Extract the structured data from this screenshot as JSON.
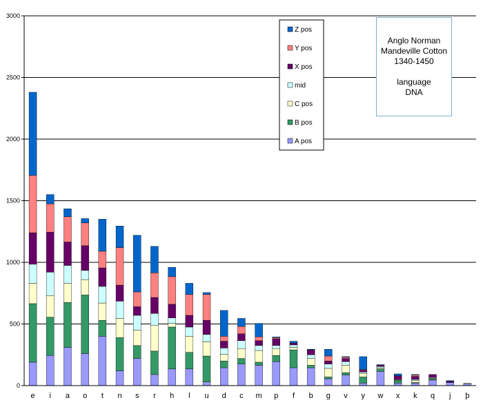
{
  "chart_data": {
    "type": "bar",
    "stacked": true,
    "title": "",
    "xlabel": "",
    "ylabel": "",
    "ylim": [
      0,
      3000
    ],
    "yticks": [
      0,
      500,
      1000,
      1500,
      2000,
      2500,
      3000
    ],
    "grid": true,
    "legend_position": "top-center",
    "categories": [
      "e",
      "i",
      "a",
      "o",
      "t",
      "n",
      "s",
      "r",
      "h",
      "l",
      "u",
      "d",
      "c",
      "m",
      "p",
      "f",
      "b",
      "g",
      "v",
      "y",
      "w",
      "x",
      "k",
      "q",
      "j",
      "þ"
    ],
    "series": [
      {
        "name": "A pos",
        "color": "#9999ff",
        "values": [
          190,
          245,
          310,
          260,
          400,
          120,
          220,
          90,
          135,
          135,
          30,
          145,
          175,
          165,
          195,
          145,
          145,
          55,
          85,
          20,
          115,
          20,
          20,
          45,
          25,
          15
        ]
      },
      {
        "name": "B pos",
        "color": "#339966",
        "values": [
          475,
          310,
          365,
          475,
          130,
          270,
          105,
          190,
          340,
          135,
          210,
          55,
          45,
          25,
          50,
          145,
          20,
          15,
          20,
          50,
          20,
          20,
          5,
          10,
          0,
          0
        ]
      },
      {
        "name": "C pos",
        "color": "#ffffcc",
        "values": [
          165,
          175,
          155,
          125,
          140,
          155,
          125,
          210,
          30,
          130,
          115,
          55,
          80,
          95,
          55,
          20,
          55,
          70,
          60,
          30,
          10,
          5,
          15,
          5,
          0,
          5
        ]
      },
      {
        "name": "mid",
        "color": "#ccffff",
        "values": [
          155,
          190,
          145,
          75,
          135,
          140,
          120,
          95,
          45,
          75,
          60,
          50,
          65,
          40,
          25,
          20,
          30,
          35,
          30,
          10,
          10,
          5,
          10,
          5,
          0,
          0
        ]
      },
      {
        "name": "X pos",
        "color": "#660066",
        "values": [
          255,
          325,
          190,
          200,
          150,
          130,
          70,
          130,
          110,
          95,
          115,
          55,
          55,
          40,
          55,
          15,
          40,
          25,
          25,
          15,
          10,
          30,
          25,
          25,
          10,
          0
        ]
      },
      {
        "name": "Y pos",
        "color": "#ff8080",
        "values": [
          465,
          230,
          205,
          185,
          135,
          305,
          120,
          200,
          225,
          170,
          210,
          40,
          60,
          30,
          10,
          0,
          0,
          40,
          10,
          5,
          0,
          0,
          10,
          0,
          0,
          0
        ]
      },
      {
        "name": "Z pos",
        "color": "#0066cc",
        "values": [
          675,
          75,
          65,
          35,
          260,
          175,
          460,
          215,
          75,
          90,
          15,
          210,
          65,
          110,
          5,
          15,
          5,
          55,
          5,
          105,
          5,
          15,
          5,
          0,
          5,
          0
        ]
      }
    ],
    "annotation": [
      "Anglo Norman",
      "Mandeville Cotton",
      "1340-1450",
      "",
      "language",
      "DNA"
    ]
  }
}
